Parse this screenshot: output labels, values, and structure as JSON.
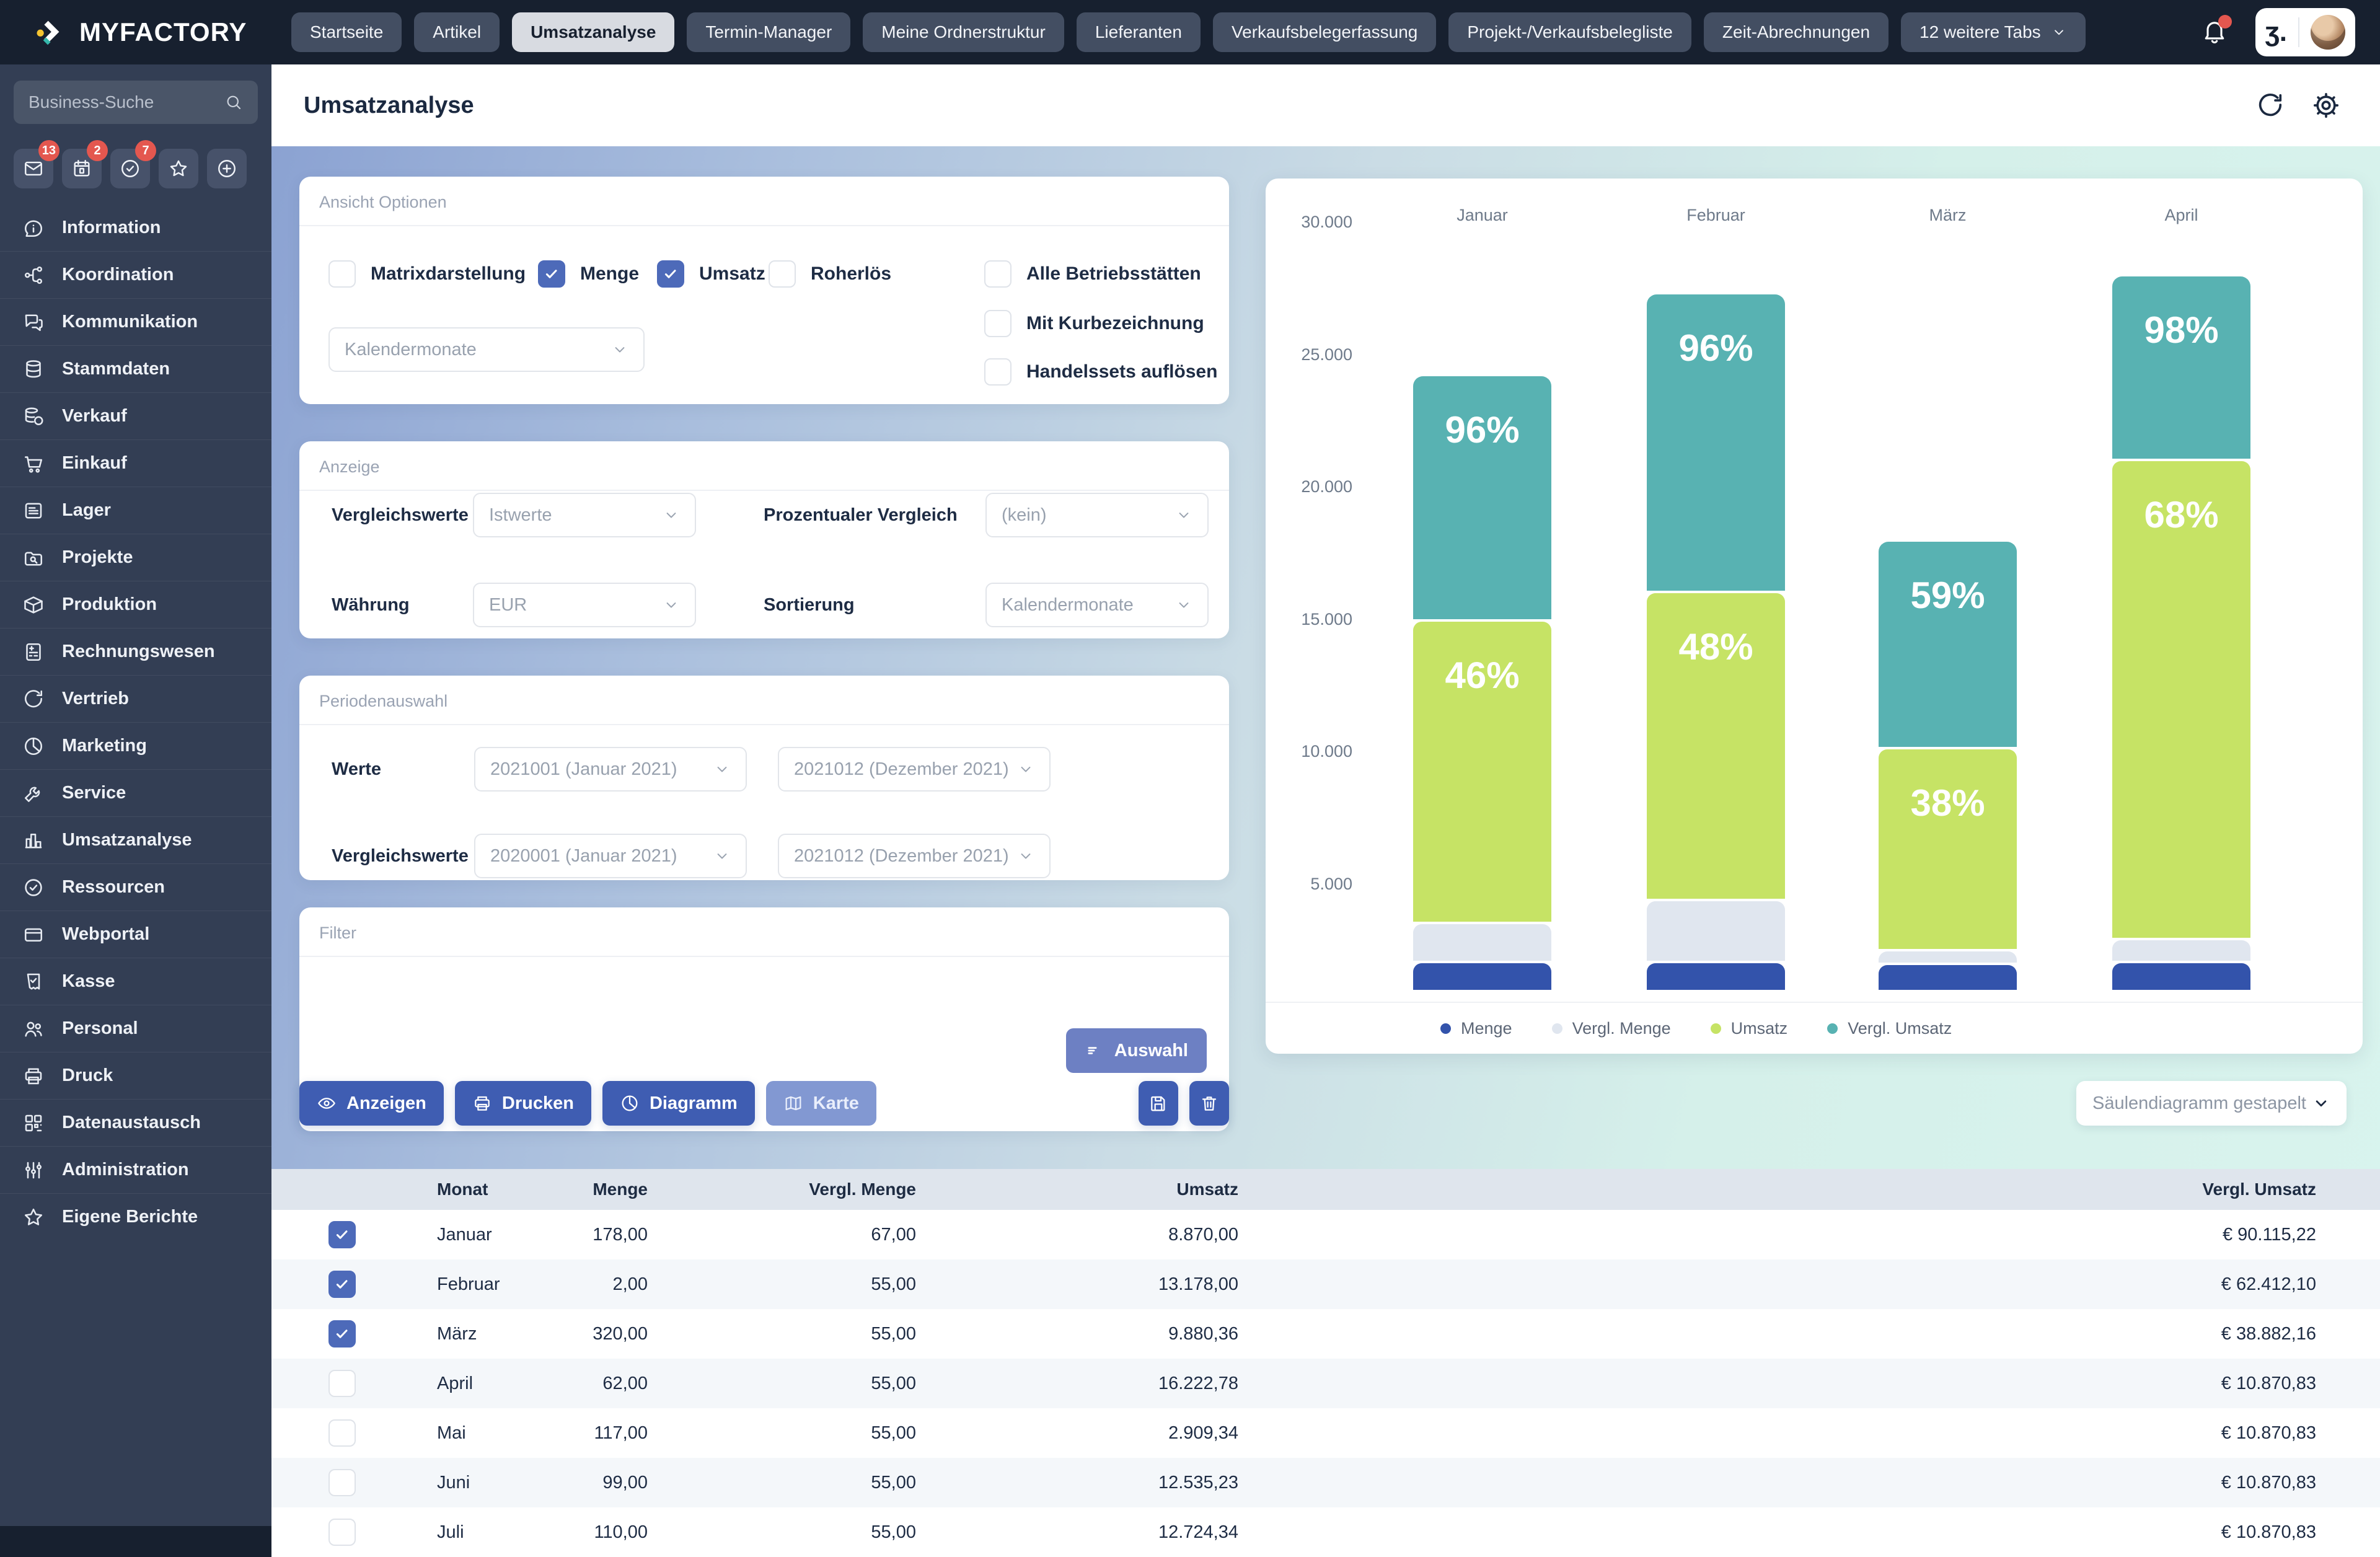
{
  "topbar": {
    "brand": "MYFACTORY",
    "tabs": [
      {
        "label": "Startseite",
        "active": false
      },
      {
        "label": "Artikel",
        "active": false
      },
      {
        "label": "Umsatzanalyse",
        "active": true
      },
      {
        "label": "Termin-Manager",
        "active": false
      },
      {
        "label": "Meine Ordnerstruktur",
        "active": false
      },
      {
        "label": "Lieferanten",
        "active": false
      },
      {
        "label": "Verkaufsbelegerfassung",
        "active": false
      },
      {
        "label": "Projekt-/Verkaufsbelegliste",
        "active": false
      },
      {
        "label": "Zeit-Abrechnungen",
        "active": false
      }
    ],
    "more_tabs": "12 weitere Tabs",
    "user_glyph": "ʒ."
  },
  "sidebar": {
    "search_placeholder": "Business-Suche",
    "shortcuts": [
      {
        "icon": "mail",
        "badge": "13"
      },
      {
        "icon": "calendar",
        "badge": "2"
      },
      {
        "icon": "check-circle",
        "badge": "7"
      },
      {
        "icon": "star",
        "badge": ""
      },
      {
        "icon": "plus-circle",
        "badge": ""
      }
    ],
    "items": [
      {
        "icon": "info",
        "label": "Information"
      },
      {
        "icon": "branch",
        "label": "Koordination"
      },
      {
        "icon": "chat",
        "label": "Kommunikation"
      },
      {
        "icon": "database",
        "label": "Stammdaten"
      },
      {
        "icon": "sales",
        "label": "Verkauf"
      },
      {
        "icon": "cart",
        "label": "Einkauf"
      },
      {
        "icon": "list-card",
        "label": "Lager"
      },
      {
        "icon": "folder-search",
        "label": "Projekte"
      },
      {
        "icon": "package",
        "label": "Produktion"
      },
      {
        "icon": "calculator",
        "label": "Rechnungswesen"
      },
      {
        "icon": "refresh",
        "label": "Vertrieb"
      },
      {
        "icon": "pie",
        "label": "Marketing"
      },
      {
        "icon": "wrench",
        "label": "Service"
      },
      {
        "icon": "bar-chart",
        "label": "Umsatzanalyse"
      },
      {
        "icon": "badge-check",
        "label": "Ressourcen"
      },
      {
        "icon": "credit-card",
        "label": "Webportal"
      },
      {
        "icon": "receipt",
        "label": "Kasse"
      },
      {
        "icon": "users",
        "label": "Personal"
      },
      {
        "icon": "printer",
        "label": "Druck"
      },
      {
        "icon": "qr",
        "label": "Datenaustausch"
      },
      {
        "icon": "sliders",
        "label": "Administration"
      },
      {
        "icon": "star",
        "label": "Eigene Berichte"
      }
    ]
  },
  "header": {
    "title": "Umsatzanalyse"
  },
  "panels": {
    "ansicht": {
      "title": "Ansicht Optionen",
      "checkboxes": [
        {
          "label": "Matrixdarstellung",
          "checked": false
        },
        {
          "label": "Menge",
          "checked": true
        },
        {
          "label": "Umsatz",
          "checked": true
        },
        {
          "label": "Roherlös",
          "checked": false
        }
      ],
      "right_checkboxes": [
        {
          "label": "Alle Betriebsstätten",
          "checked": false
        },
        {
          "label": "Mit Kurbezeichnung",
          "checked": false
        },
        {
          "label": "Handelssets auflösen",
          "checked": false
        }
      ],
      "dropdown": "Kalendermonate"
    },
    "anzeige": {
      "title": "Anzeige",
      "fields": [
        {
          "label": "Vergleichswerte",
          "value": "Istwerte"
        },
        {
          "label": "Prozentualer Vergleich",
          "value": "(kein)"
        },
        {
          "label": "Währung",
          "value": "EUR"
        },
        {
          "label": "Sortierung",
          "value": "Kalendermonate"
        }
      ]
    },
    "perioden": {
      "title": "Periodenauswahl",
      "rows": [
        {
          "label": "Werte",
          "from": "2021001 (Januar 2021)",
          "to": "2021012 (Dezember 2021)"
        },
        {
          "label": "Vergleichswerte",
          "from": "2020001 (Januar 2021)",
          "to": "2021012 (Dezember 2021)"
        }
      ]
    },
    "filter": {
      "title": "Filter",
      "button": "Auswahl"
    }
  },
  "actions": {
    "anzeigen": "Anzeigen",
    "drucken": "Drucken",
    "diagramm": "Diagramm",
    "karte": "Karte"
  },
  "chart_dropdown": "Säulendiagramm gestapelt",
  "chart_data": {
    "type": "bar",
    "stacked": true,
    "categories": [
      "Januar",
      "Februar",
      "März",
      "April"
    ],
    "ylim": [
      0,
      30000
    ],
    "yticks": [
      "30.000",
      "25.000",
      "20.000",
      "15.000",
      "10.000",
      "5.000"
    ],
    "ytick_values": [
      30000,
      25000,
      20000,
      15000,
      10000,
      5000
    ],
    "grid": false,
    "legend_position": "bottom",
    "series": [
      {
        "name": "Menge",
        "color": "#3353ab",
        "values": [
          2130,
          2130,
          2060,
          2130
        ]
      },
      {
        "name": "Vergl. Menge",
        "color": "#e0e6ef",
        "values": [
          1480,
          2340,
          520,
          870
        ]
      },
      {
        "name": "Umsatz",
        "color": "#c6e365",
        "values": [
          11430,
          11640,
          7630,
          18100
        ]
      },
      {
        "name": "Vergl. Umsatz",
        "color": "#58b2b2",
        "values": [
          9180,
          11200,
          7750,
          6890
        ]
      }
    ],
    "labels": {
      "vergl_umsatz_pct": [
        "96%",
        "96%",
        "59%",
        "98%"
      ],
      "umsatz_pct": [
        "46%",
        "48%",
        "38%",
        "68%"
      ]
    }
  },
  "table": {
    "columns": [
      "Monat",
      "Menge",
      "Vergl. Menge",
      "Umsatz",
      "Vergl. Umsatz"
    ],
    "rows": [
      {
        "checked": true,
        "monat": "Januar",
        "menge": "178,00",
        "vergl_menge": "67,00",
        "umsatz": "8.870,00",
        "vergl_umsatz": "€ 90.115,22"
      },
      {
        "checked": true,
        "monat": "Februar",
        "menge": "2,00",
        "vergl_menge": "55,00",
        "umsatz": "13.178,00",
        "vergl_umsatz": "€ 62.412,10"
      },
      {
        "checked": true,
        "monat": "März",
        "menge": "320,00",
        "vergl_menge": "55,00",
        "umsatz": "9.880,36",
        "vergl_umsatz": "€ 38.882,16"
      },
      {
        "checked": false,
        "monat": "April",
        "menge": "62,00",
        "vergl_menge": "55,00",
        "umsatz": "16.222,78",
        "vergl_umsatz": "€ 10.870,83"
      },
      {
        "checked": false,
        "monat": "Mai",
        "menge": "117,00",
        "vergl_menge": "55,00",
        "umsatz": "2.909,34",
        "vergl_umsatz": "€ 10.870,83"
      },
      {
        "checked": false,
        "monat": "Juni",
        "menge": "99,00",
        "vergl_menge": "55,00",
        "umsatz": "12.535,23",
        "vergl_umsatz": "€ 10.870,83"
      },
      {
        "checked": false,
        "monat": "Juli",
        "menge": "110,00",
        "vergl_menge": "55,00",
        "umsatz": "12.724,34",
        "vergl_umsatz": "€ 10.870,83"
      }
    ]
  }
}
